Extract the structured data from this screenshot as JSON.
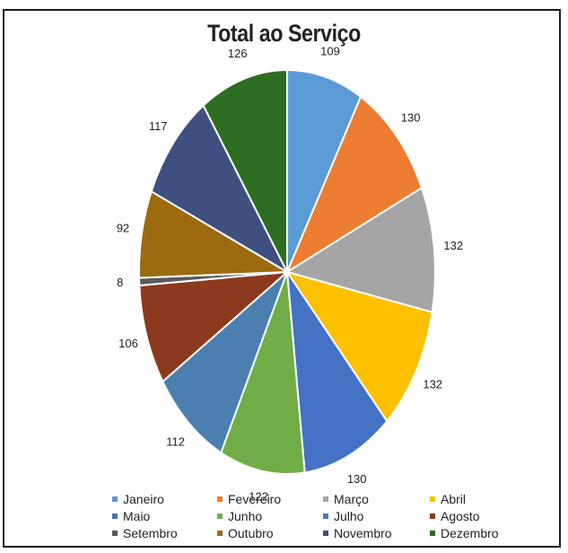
{
  "chart_data": {
    "type": "pie",
    "title": "Total ao Serviço",
    "categories": [
      "Janeiro",
      "Fevereiro",
      "Março",
      "Abril",
      "Maio",
      "Junho",
      "Julho",
      "Agosto",
      "Setembro",
      "Outubro",
      "Novembro",
      "Dezembro"
    ],
    "values": [
      109,
      130,
      132,
      132,
      130,
      122,
      112,
      106,
      8,
      92,
      117,
      126
    ],
    "colors": [
      "#5b9bd5",
      "#ed7d31",
      "#a5a5a5",
      "#ffc000",
      "#4472c4",
      "#70ad47",
      "#4a7fb0",
      "#8b3a1e",
      "#5a5a5a",
      "#9c6b10",
      "#3f4f80",
      "#2e6e22"
    ],
    "legend_position": "bottom",
    "data_labels": true
  }
}
